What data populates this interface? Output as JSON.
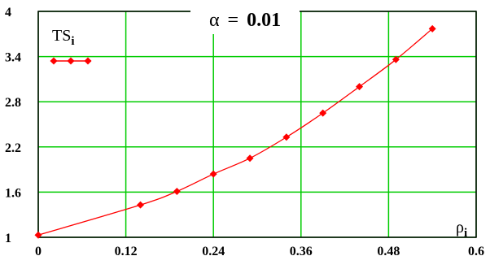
{
  "chart_data": {
    "type": "line",
    "title_symbol": "α",
    "title_eq": "=",
    "title_value": "0.01",
    "legend": {
      "name": "TS",
      "subscript": "i",
      "placement": "top-left"
    },
    "xlabel": {
      "name": "ρ",
      "subscript": "i"
    },
    "xlim": [
      0,
      0.6
    ],
    "ylim": [
      1,
      4
    ],
    "x_ticks": [
      "0",
      "0.12",
      "0.24",
      "0.36",
      "0.48",
      "0.6"
    ],
    "x_tick_values": [
      0,
      0.12,
      0.24,
      0.36,
      0.48,
      0.6
    ],
    "y_ticks": [
      "1",
      "1.6",
      "2.2",
      "2.8",
      "3.4",
      "4"
    ],
    "y_tick_values": [
      1,
      1.6,
      2.2,
      2.8,
      3.4,
      4
    ],
    "grid": true,
    "colors": {
      "series": "#ff0000",
      "grid": "#00cc00",
      "axes": "#000000"
    },
    "series": [
      {
        "x": [
          0,
          0.14,
          0.19,
          0.24,
          0.29,
          0.34,
          0.39,
          0.44,
          0.49,
          0.54
        ],
        "y": [
          1.03,
          1.43,
          1.61,
          1.84,
          2.05,
          2.33,
          2.65,
          3.0,
          3.36,
          3.77
        ]
      }
    ]
  }
}
